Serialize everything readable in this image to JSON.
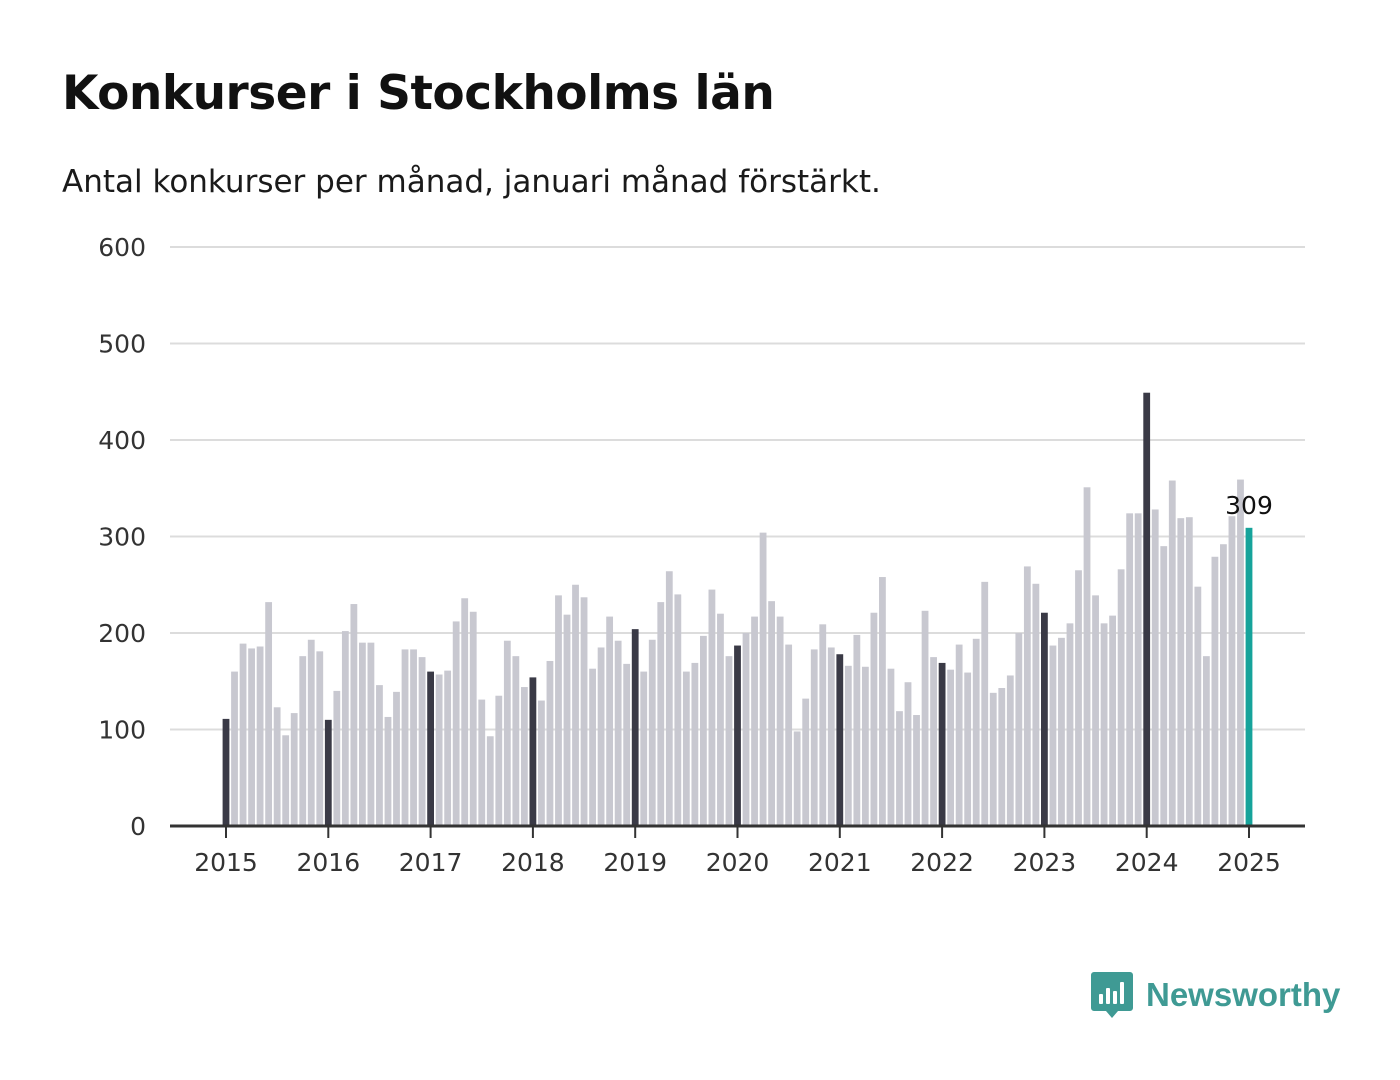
{
  "colors": {
    "regular": "#c8c8d0",
    "january": "#3a3a46",
    "latest": "#16a39b",
    "grid": "#dcdcdc",
    "axis": "#333333",
    "brand": "#3f9a94"
  },
  "brand": {
    "name": "Newsworthy",
    "icon": "bar-chart-icon"
  },
  "chart_data": {
    "type": "bar",
    "title": "Konkurser i Stockholms län",
    "subtitle": "Antal konkurser per månad, januari månad förstärkt.",
    "xlabel": "",
    "ylabel": "",
    "ylim": [
      0,
      600
    ],
    "yticks": [
      "0",
      "100",
      "200",
      "300",
      "400",
      "500",
      "600"
    ],
    "xticks": [
      "2015",
      "2016",
      "2017",
      "2018",
      "2019",
      "2020",
      "2021",
      "2022",
      "2023",
      "2024",
      "2025"
    ],
    "grid": true,
    "highlight": "januari bars darker, latest bar teal",
    "last_label": "309",
    "series": [
      {
        "year": 2015,
        "values": [
          111,
          160,
          189,
          184,
          186,
          232,
          123,
          94,
          117,
          176,
          193,
          181
        ]
      },
      {
        "year": 2016,
        "values": [
          110,
          140,
          202,
          230,
          190,
          190,
          146,
          113,
          139,
          183,
          183,
          175
        ]
      },
      {
        "year": 2017,
        "values": [
          160,
          157,
          161,
          212,
          236,
          222,
          131,
          93,
          135,
          192,
          176,
          144
        ]
      },
      {
        "year": 2018,
        "values": [
          154,
          130,
          171,
          239,
          219,
          250,
          237,
          163,
          185,
          217,
          192,
          168
        ]
      },
      {
        "year": 2019,
        "values": [
          204,
          160,
          193,
          232,
          264,
          240,
          160,
          169,
          197,
          245,
          220,
          176
        ]
      },
      {
        "year": 2020,
        "values": [
          187,
          200,
          217,
          304,
          233,
          217,
          188,
          98,
          132,
          183,
          209,
          185
        ]
      },
      {
        "year": 2021,
        "values": [
          178,
          166,
          198,
          165,
          221,
          258,
          163,
          119,
          149,
          115,
          223,
          175
        ]
      },
      {
        "year": 2022,
        "values": [
          169,
          162,
          188,
          159,
          194,
          253,
          138,
          143,
          156,
          200,
          269,
          251
        ]
      },
      {
        "year": 2023,
        "values": [
          221,
          187,
          195,
          210,
          265,
          351,
          239,
          210,
          218,
          266,
          324,
          324
        ]
      },
      {
        "year": 2024,
        "values": [
          449,
          328,
          290,
          358,
          319,
          320,
          248,
          176,
          279,
          292,
          321,
          359
        ]
      },
      {
        "year": 2025,
        "values": [
          309
        ]
      }
    ]
  }
}
